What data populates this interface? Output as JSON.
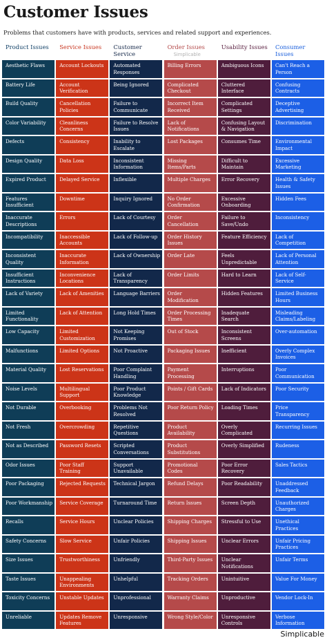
{
  "title": "Customer Issues",
  "subtitle": "Problems that customers have with products, services and related support and experiences.",
  "footer": "Simplicable",
  "columns": [
    {
      "name": "Product Issues",
      "sub": "",
      "header_color": "#0f3f66",
      "cell_color": "#0f3d57",
      "items": [
        "Aesthetic Flaws",
        "Battery Life",
        "Build Quality",
        "Color Variability",
        "Defects",
        "Design Quality",
        "Expired Product",
        "Features Insufficient",
        "Inaccurate Descriptions",
        "Incompatibility",
        "Inconsistent Quality",
        "Insufficient Instructions",
        "Lack of Variety",
        "Limited Functionality",
        "Low Capacity",
        "Malfunctions",
        "Material Quality",
        "Noise Levels",
        "Not Durable",
        "Not Fresh",
        "Not as Described",
        "Odor Issues",
        "Poor Packaging",
        "Poor Workmanship",
        "Recalls",
        "Safety Concerns",
        "Size Issues",
        "Taste Issues",
        "Toxicity Concerns",
        "Unreliable"
      ]
    },
    {
      "name": "Service Issues",
      "sub": "",
      "header_color": "#c8351f",
      "cell_color": "#cc3418",
      "items": [
        "Account Lockouts",
        "Account Verification",
        "Cancellation Policies",
        "Cleanliness Concerns",
        "Consistency",
        "Data Loss",
        "Delayed Service",
        "Downtime",
        "Errors",
        "Inaccessible Accounts",
        "Inaccurate Information",
        "Inconvenience Locations",
        "Lack of Amenities",
        "Lack of Attention",
        "Limited Customization",
        "Limited Options",
        "Lost Reservations",
        "Multilingual Support",
        "Overbooking",
        "Overcrowding",
        "Password Resets",
        "Poor Staff Training",
        "Rejected Requests",
        "Service Coverage",
        "Service Hours",
        "Slow Service",
        "Trustworthiness",
        "Unappealing Environments",
        "Unstable Updates",
        "Updates Remove Features"
      ]
    },
    {
      "name": "Customer Service",
      "sub": "",
      "header_color": "#16294a",
      "cell_color": "#12284a",
      "items": [
        "Automated Responses",
        "Being Ignored",
        "Failure to Communicate",
        "Failure to Resolve Issues",
        "Inability to Escalate",
        "Inconsistent Information",
        "Inflexible",
        "Inquiry Ignored",
        "Lack of Courtesy",
        "Lack of Follow-up",
        "Lack of Ownership",
        "Lack of Transparency",
        "Language Barriers",
        "Long Hold Times",
        "Not Keeping Promises",
        "Not Proactive",
        "Poor Complaint Handling",
        "Poor Product Knowledge",
        "Problems Not Resolved",
        "Repetitive Questions",
        "Scripted Conversations",
        "Support Unavailable",
        "Technical Jargon",
        "Turnaround Time",
        "Unclear Policies",
        "Unfair Policies",
        "Unfriendly",
        "Unhelpful",
        "Unprofessional",
        "Unresponsive"
      ]
    },
    {
      "name": "Order Issues",
      "sub": "Simplicable",
      "header_color": "#b24747",
      "cell_color": "#b54a4a",
      "items": [
        "Billing Errors",
        "Complicated Checkout",
        "Incorrect Item Received",
        "Lack of Notifications",
        "Lost Packages",
        "Missing Items/Parts",
        "Multiple Charges",
        "No Order Confirmation",
        "Order Cancellation",
        "Order History Issues",
        "Order Late",
        "Order Limits",
        "Order Modification",
        "Order Processing Times",
        "Out of Stock",
        "Packaging Issues",
        "Payment Processing",
        "Points / Gift Cards",
        "Poor Return Policy",
        "Product Availability",
        "Product Substitutions",
        "Promotional Codes",
        "Refund Delays",
        "Return Issues",
        "Shipping Charges",
        "Shipping Issues",
        "Third-Party Issues",
        "Tracking Orders",
        "Warranty Claims",
        "Wrong Style/Color"
      ]
    },
    {
      "name": "Usability Issues",
      "sub": "",
      "header_color": "#5a2040",
      "cell_color": "#4f1d3c",
      "items": [
        "Ambiguous Icons",
        "Cluttered Interface",
        "Complicated Settings",
        "Confusing Layout & Navigation",
        "Consumes Time",
        "Difficult to Maintain",
        "Error Recovery",
        "Excessive Onboarding",
        "Failure to Save/Undo",
        "Feature Efficiency",
        "Feels Unpredictable",
        "Hard to Learn",
        "Hidden Features",
        "Inadequate Search",
        "Inconsistent Screens",
        "Inefficient",
        "Interruptions",
        "Lack of Indicators",
        "Loading Times",
        "Overly Complicated",
        "Overly Simplified",
        "Poor Error Recovery",
        "Poor Readability",
        "Screen Depth",
        "Stressful to Use",
        "Unclear Errors",
        "Unclear Notifications",
        "Unintuitive",
        "Unproductive",
        "Unresponsive Controls"
      ]
    },
    {
      "name": "Consumer Issues",
      "sub": "",
      "header_color": "#1a5fdc",
      "cell_color": "#1c5fe6",
      "items": [
        "Can't Reach a Person",
        "Confusing Contracts",
        "Deceptive Advertising",
        "Discrimination",
        "Environmental Impact",
        "Excessive Marketing",
        "Health & Safety Issues",
        "Hidden Fees",
        "Inconsistency",
        "Lack of Competition",
        "Lack of Personal Attention",
        "Lack of Self-Service",
        "Limited Business Hours",
        "Misleading Claims/Labeling",
        "Over-automation",
        "Overly Complex Invoices",
        "Poor Communication",
        "Poor Security",
        "Price Transparency",
        "Recurring Issues",
        "Rudeness",
        "Sales Tactics",
        "Unaddressed Feedback",
        "Unauthorized Charges",
        "Unethical Practices",
        "Unfair Pricing Practices",
        "Unfair Terms",
        "Value For Money",
        "Vendor Lock-In",
        "Verbose Information"
      ]
    }
  ]
}
